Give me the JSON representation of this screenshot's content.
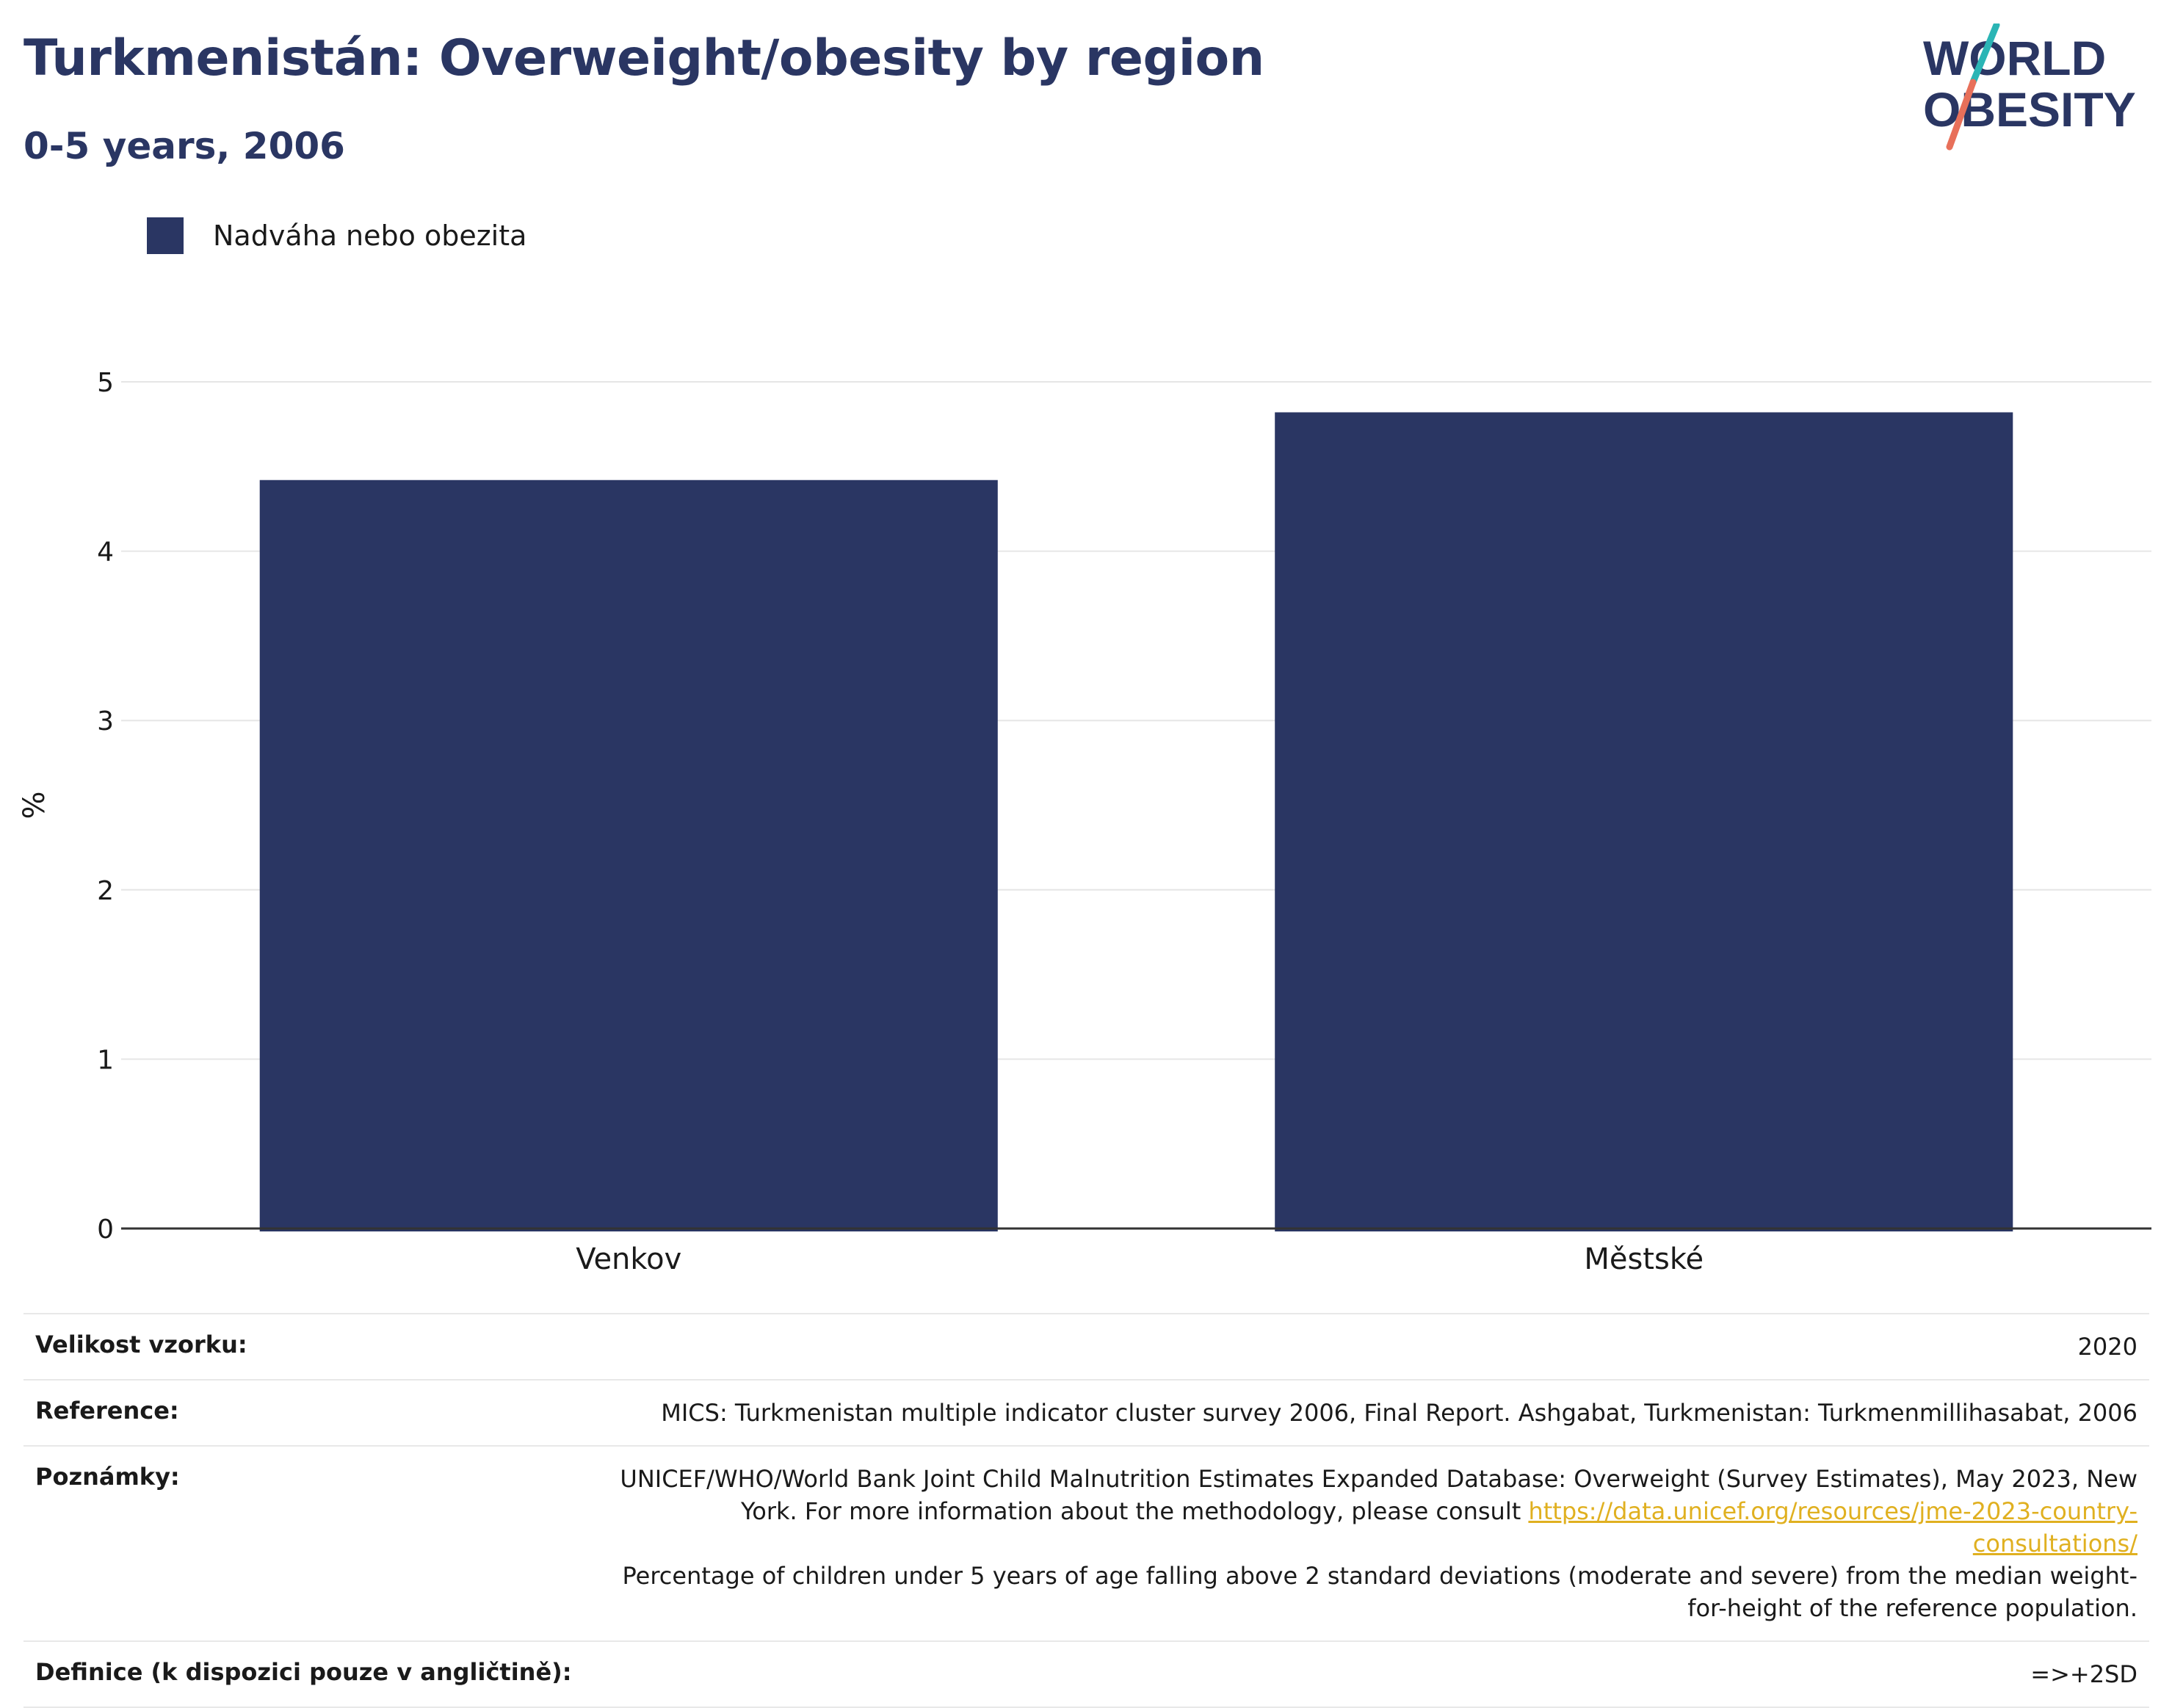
{
  "title": "Turkmenistán: Overweight/obesity by region",
  "subtitle": "0-5 years, 2006",
  "logo": {
    "line1": "WORLD",
    "line2": "OBESITY"
  },
  "colors": {
    "bar": "#2a3663",
    "title": "#2a3663",
    "link": "#e0b020",
    "logo_teal": "#2bb5b5",
    "logo_coral": "#e8705a"
  },
  "legend": [
    {
      "label": "Nadváha nebo obezita",
      "color": "#2a3663"
    }
  ],
  "chart_data": {
    "type": "bar",
    "categories": [
      "Venkov",
      "Městské"
    ],
    "series": [
      {
        "name": "Nadváha nebo obezita",
        "values": [
          4.42,
          4.82
        ]
      }
    ],
    "ylabel": "%",
    "ylim": [
      0,
      5
    ],
    "yticks": [
      "0",
      "1",
      "2",
      "3",
      "4",
      "5"
    ],
    "grid": true,
    "legend_position": "top-left"
  },
  "meta": {
    "sample_label": "Velikost vzorku:",
    "sample_value": "2020",
    "reference_label": "Reference:",
    "reference_value": "MICS: Turkmenistan multiple indicator cluster survey 2006, Final Report. Ashgabat, Turkmenistan: Turkmenmillihasabat, 2006",
    "notes_label": "Poznámky:",
    "notes_text1": "UNICEF/WHO/World Bank Joint Child Malnutrition Estimates Expanded Database: Overweight (Survey Estimates), May 2023, New York. For more information about the methodology, please consult ",
    "notes_link": "https://data.unicef.org/resources/jme-2023-country-consultations/",
    "notes_text2": "Percentage of children under 5 years of age falling above 2 standard deviations (moderate and severe) from the median weight-for-height of the reference population.",
    "definition_label": "Definice (k dispozici pouze v angličtině):",
    "definition_value": "=>+2SD"
  }
}
